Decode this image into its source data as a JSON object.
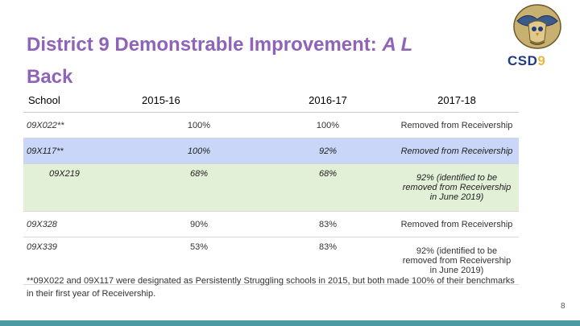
{
  "slide": {
    "title_main": "District 9 Demonstrable Improvement: ",
    "title_italic": "A L",
    "title_line2": "Back",
    "logo_icon": "district-crest-icon",
    "logo_text_main": "CSD",
    "logo_text_number": "9",
    "colors": {
      "title": "#8e63b8",
      "row_blue": "#c9d6f7",
      "row_green": "#e3f0d8",
      "bottom_bar": "#4b9aa3"
    },
    "page_number": "8"
  },
  "table": {
    "headers": [
      "School",
      "2015-16",
      "2016-17",
      "2017-18"
    ],
    "rows": [
      [
        "09X022**",
        "100%",
        "100%",
        "Removed from Receivership"
      ],
      [
        "09X117**",
        "100%",
        "92%",
        "Removed from Receivership"
      ],
      [
        "09X219",
        "68%",
        "68%",
        "92% (identified to be removed from Receivership in June 2019)"
      ],
      [
        "09X328",
        "90%",
        "83%",
        "Removed from Receivership"
      ],
      [
        "09X339",
        "53%",
        "83%",
        "92% (identified to be removed from Receivership in June 2019)"
      ]
    ]
  },
  "footnote": "**09X022 and 09X117 were designated as Persistently Struggling schools in 2015, but both made 100% of their benchmarks in their first year of Receivership."
}
